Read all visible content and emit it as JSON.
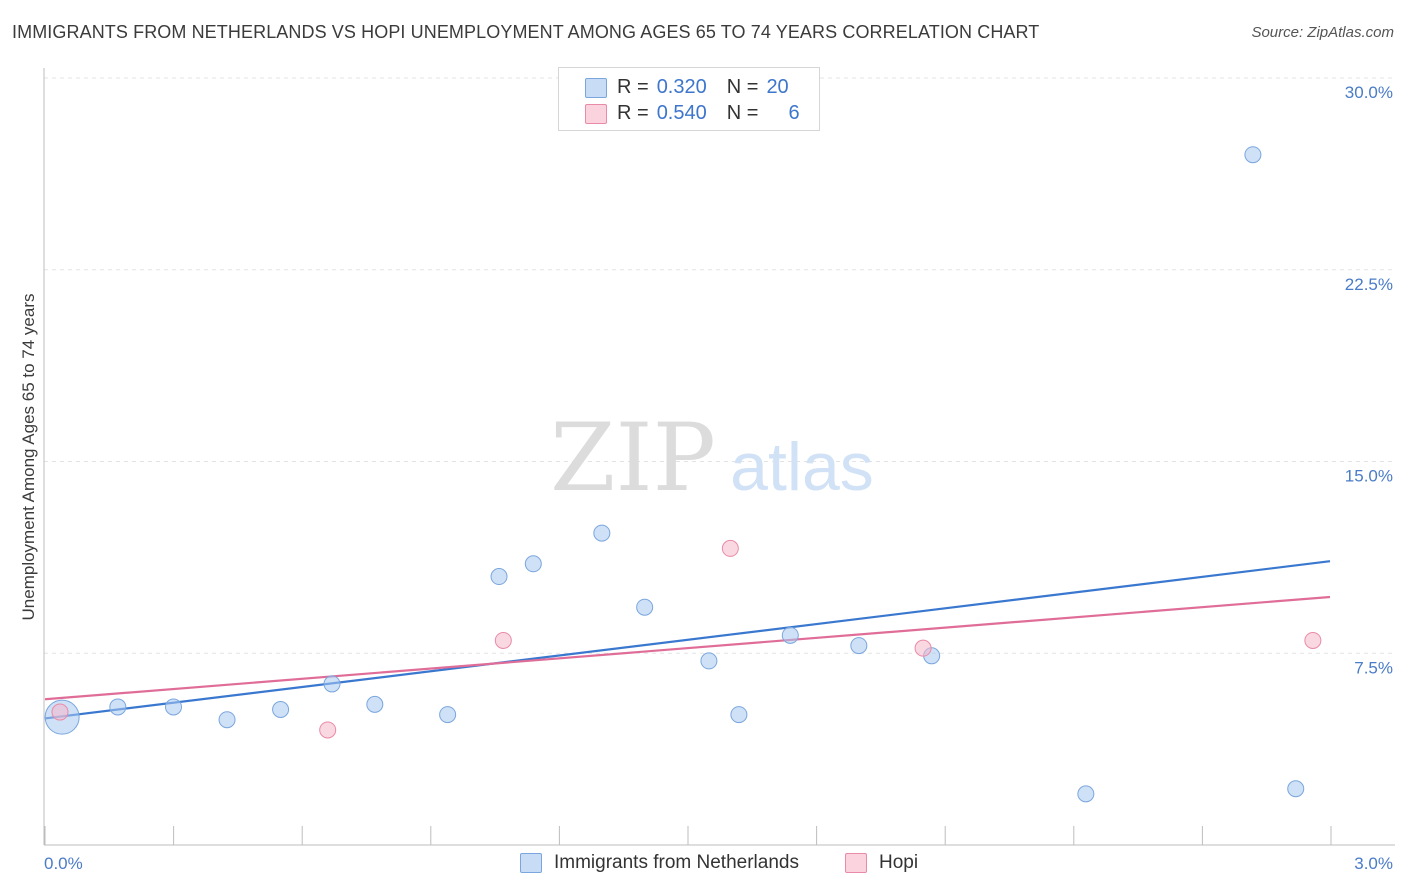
{
  "title": "IMMIGRANTS FROM NETHERLANDS VS HOPI UNEMPLOYMENT AMONG AGES 65 TO 74 YEARS CORRELATION CHART",
  "source": "Source: ZipAtlas.com",
  "watermark": {
    "zip": "ZIP",
    "atlas": "atlas"
  },
  "legend": {
    "rows": [
      {
        "r_label": "R =",
        "r_value": "0.320",
        "n_label": "N =",
        "n_value": "20",
        "color": "#a8c8f0"
      },
      {
        "r_label": "R =",
        "r_value": "0.540",
        "n_label": "N =",
        "n_value": "6",
        "color": "#f6b8cb"
      }
    ]
  },
  "bottom_legend": [
    "Immigrants from Netherlands",
    "Hopi"
  ],
  "chart_data": {
    "type": "scatter",
    "title": "IMMIGRANTS FROM NETHERLANDS VS HOPI UNEMPLOYMENT AMONG AGES 65 TO 74 YEARS CORRELATION CHART",
    "xlabel": "",
    "ylabel": "Unemployment Among Ages 65 to 74 years",
    "xlim": [
      0,
      3.0
    ],
    "ylim": [
      0,
      30.0
    ],
    "x_tick_labels": [
      "0.0%",
      "3.0%"
    ],
    "y_ticks": [
      7.5,
      15.0,
      22.5,
      30.0
    ],
    "y_tick_labels": [
      "7.5%",
      "15.0%",
      "22.5%",
      "30.0%"
    ],
    "grid": "horizontal dashed",
    "legend_position": "top-center",
    "series": [
      {
        "name": "Immigrants from Netherlands",
        "color": "#a8c8f0",
        "stroke": "#7aa6dd",
        "trend_color": "#3a78d0",
        "points": [
          [
            0.04,
            5.0,
            "large"
          ],
          [
            0.17,
            5.4
          ],
          [
            0.3,
            5.4
          ],
          [
            0.425,
            4.9
          ],
          [
            0.55,
            5.3
          ],
          [
            0.67,
            6.3
          ],
          [
            0.77,
            5.5
          ],
          [
            0.94,
            5.1
          ],
          [
            1.06,
            10.5
          ],
          [
            1.14,
            11.0
          ],
          [
            1.3,
            12.2
          ],
          [
            1.4,
            9.3
          ],
          [
            1.55,
            7.2
          ],
          [
            1.62,
            5.1
          ],
          [
            1.74,
            8.2
          ],
          [
            1.9,
            7.8
          ],
          [
            2.07,
            7.4
          ],
          [
            2.43,
            2.0
          ],
          [
            2.82,
            27.0
          ],
          [
            2.92,
            2.2
          ]
        ],
        "trend": {
          "x": [
            0.0,
            3.0
          ],
          "y": [
            4.95,
            11.1
          ]
        }
      },
      {
        "name": "Hopi",
        "color": "#f6b8cb",
        "stroke": "#e98aa8",
        "trend_color": "#e06d98",
        "points": [
          [
            0.035,
            5.2
          ],
          [
            0.66,
            4.5
          ],
          [
            1.07,
            8.0
          ],
          [
            1.6,
            11.6
          ],
          [
            2.05,
            7.7
          ],
          [
            2.96,
            8.0
          ]
        ],
        "trend": {
          "x": [
            0.0,
            3.0
          ],
          "y": [
            5.7,
            9.7
          ]
        }
      }
    ]
  }
}
